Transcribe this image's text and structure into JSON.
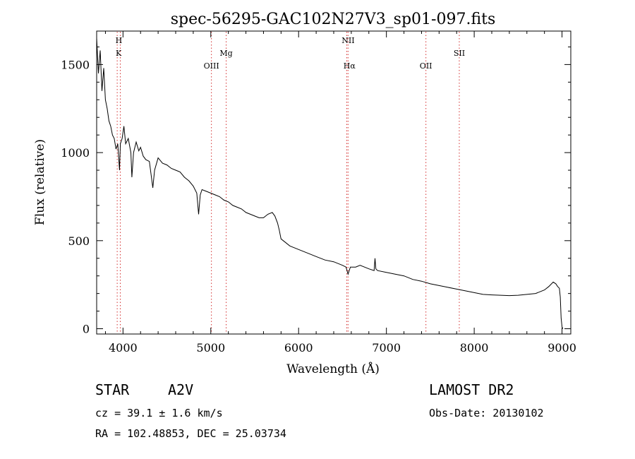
{
  "chart_data": {
    "type": "line",
    "title": "spec-56295-GAC102N27V3_sp01-097.fits",
    "xlabel": "Wavelength (Å)",
    "ylabel": "Flux (relative)",
    "xlim": [
      3700,
      9100
    ],
    "ylim": [
      -30,
      1690
    ],
    "x_ticks": [
      4000,
      5000,
      6000,
      7000,
      8000,
      9000
    ],
    "y_ticks": [
      0,
      500,
      1000,
      1500
    ],
    "grid": false,
    "series": [
      {
        "x": [
          3700,
          3720,
          3740,
          3760,
          3780,
          3800,
          3820,
          3840,
          3860,
          3880,
          3900,
          3920,
          3940,
          3960,
          3970,
          3990,
          4010,
          4030,
          4060,
          4090,
          4101,
          4120,
          4150,
          4180,
          4200,
          4230,
          4260,
          4300,
          4340,
          4360,
          4400,
          4450,
          4500,
          4550,
          4600,
          4650,
          4700,
          4750,
          4800,
          4840,
          4861,
          4880,
          4900,
          4950,
          5000,
          5050,
          5100,
          5150,
          5200,
          5250,
          5300,
          5350,
          5400,
          5450,
          5500,
          5550,
          5600,
          5650,
          5700,
          5730,
          5760,
          5780,
          5800,
          5850,
          5900,
          5950,
          6000,
          6100,
          6200,
          6300,
          6400,
          6500,
          6540,
          6563,
          6590,
          6650,
          6700,
          6800,
          6860,
          6870,
          6880,
          6900,
          7000,
          7100,
          7200,
          7300,
          7400,
          7500,
          7600,
          7700,
          7800,
          7900,
          8000,
          8100,
          8200,
          8300,
          8400,
          8500,
          8600,
          8700,
          8800,
          8850,
          8900,
          8930,
          8950,
          8970,
          8980,
          8990,
          9000,
          9010
        ],
        "y": [
          1650,
          1450,
          1580,
          1350,
          1480,
          1300,
          1250,
          1180,
          1150,
          1100,
          1080,
          1020,
          1050,
          900,
          1050,
          1080,
          1150,
          1050,
          1080,
          1000,
          860,
          1000,
          1060,
          1010,
          1030,
          980,
          960,
          950,
          800,
          900,
          970,
          940,
          930,
          910,
          900,
          890,
          860,
          840,
          810,
          770,
          650,
          760,
          790,
          780,
          770,
          760,
          750,
          730,
          720,
          700,
          690,
          680,
          660,
          650,
          640,
          630,
          630,
          650,
          660,
          640,
          600,
          560,
          510,
          490,
          470,
          460,
          450,
          430,
          410,
          390,
          380,
          360,
          350,
          310,
          350,
          350,
          360,
          340,
          330,
          400,
          340,
          330,
          320,
          310,
          300,
          280,
          270,
          255,
          245,
          235,
          225,
          215,
          205,
          195,
          192,
          190,
          188,
          190,
          195,
          200,
          220,
          240,
          265,
          255,
          240,
          230,
          180,
          60,
          10,
          0
        ]
      }
    ],
    "lines": [
      {
        "name": "K",
        "x": 3934,
        "color": "#d43030"
      },
      {
        "name": "H",
        "x": 3969,
        "color": "#d43030"
      },
      {
        "name": "OIII",
        "x": 5007,
        "color": "#d43030"
      },
      {
        "name": "Mg",
        "x": 5175,
        "color": "#d43030"
      },
      {
        "name": "NII",
        "x": 6548,
        "color": "#d43030"
      },
      {
        "name": "Hα",
        "x": 6563,
        "color": "#d43030"
      },
      {
        "name": "OII",
        "x": 7450,
        "color": "#d43030"
      },
      {
        "name": "SII",
        "x": 7830,
        "color": "#d43030"
      }
    ]
  },
  "info": {
    "class": "STAR",
    "subclass": "A2V",
    "survey": "LAMOST DR2",
    "cz": "cz = 39.1 ± 1.6 km/s",
    "obs_date": "Obs-Date: 20130102",
    "coords": "RA = 102.48853, DEC =  25.03734"
  }
}
